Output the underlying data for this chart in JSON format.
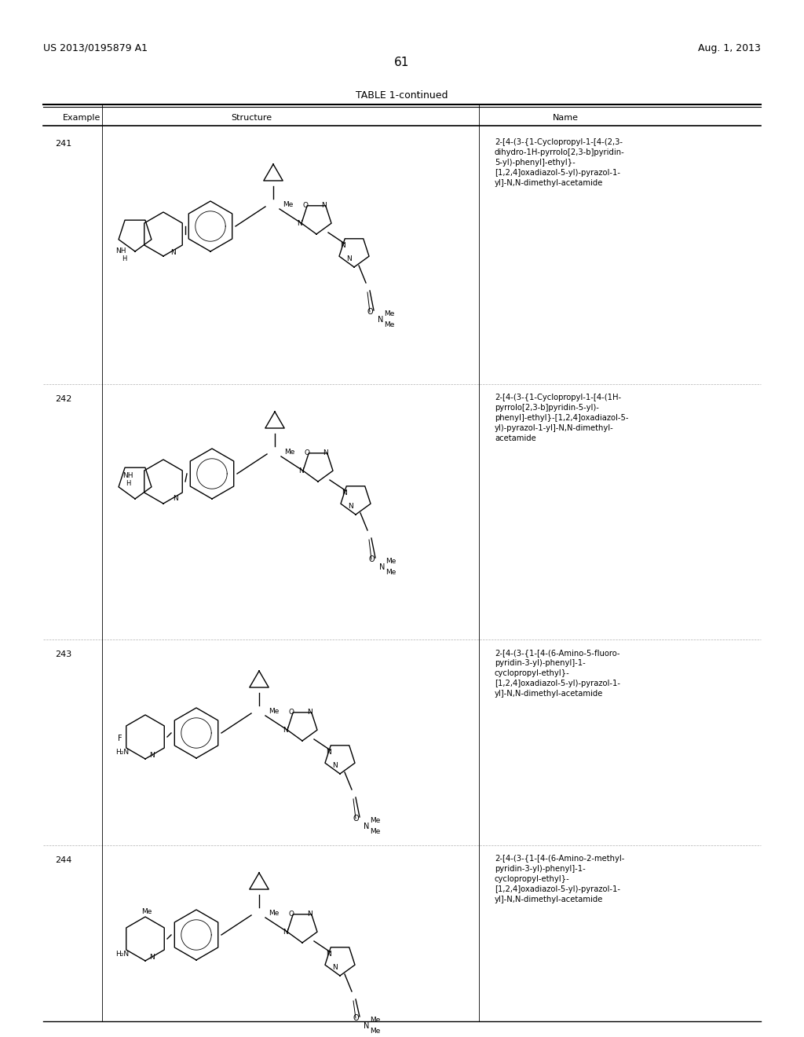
{
  "page_number": "61",
  "left_header": "US 2013/0195879 A1",
  "right_header": "Aug. 1, 2013",
  "table_title": "TABLE 1-continued",
  "col_headers": [
    "Example",
    "Structure",
    "Name"
  ],
  "examples": [
    {
      "number": "241",
      "name": "2-[4-(3-{1-Cyclopropyl-1-[4-(2,3-\ndihydro-1H-pyrrolo[2,3-b]pyridin-\n5-yl)-phenyl]-ethyl}-\n[1,2,4]oxadiazol-5-yl)-pyrazol-1-\nyl]-N,N-dimethyl-acetamide"
    },
    {
      "number": "242",
      "name": "2-[4-(3-{1-Cyclopropyl-1-[4-(1H-\npyrrolo[2,3-b]pyridin-5-yl)-\nphenyl]-ethyl}-[1,2,4]oxadiazol-5-\nyl)-pyrazol-1-yl]-N,N-dimethyl-\nacetamide"
    },
    {
      "number": "243",
      "name": "2-[4-(3-{1-[4-(6-Amino-5-fluoro-\npyridin-3-yl)-phenyl]-1-\ncyclopropyl-ethyl}-\n[1,2,4]oxadiazol-5-yl)-pyrazol-1-\nyl]-N,N-dimethyl-acetamide"
    },
    {
      "number": "244",
      "name": "2-[4-(3-{1-[4-(6-Amino-2-methyl-\npyridin-3-yl)-phenyl]-1-\ncyclopropyl-ethyl}-\n[1,2,4]oxadiazol-5-yl)-pyrazol-1-\nyl]-N,N-dimethyl-acetamide"
    }
  ],
  "bg_color": "#ffffff",
  "text_color": "#000000",
  "line_color": "#000000",
  "font_size_header": 9,
  "font_size_body": 8,
  "font_size_page": 10,
  "font_size_table_title": 9,
  "font_size_col_header": 8
}
